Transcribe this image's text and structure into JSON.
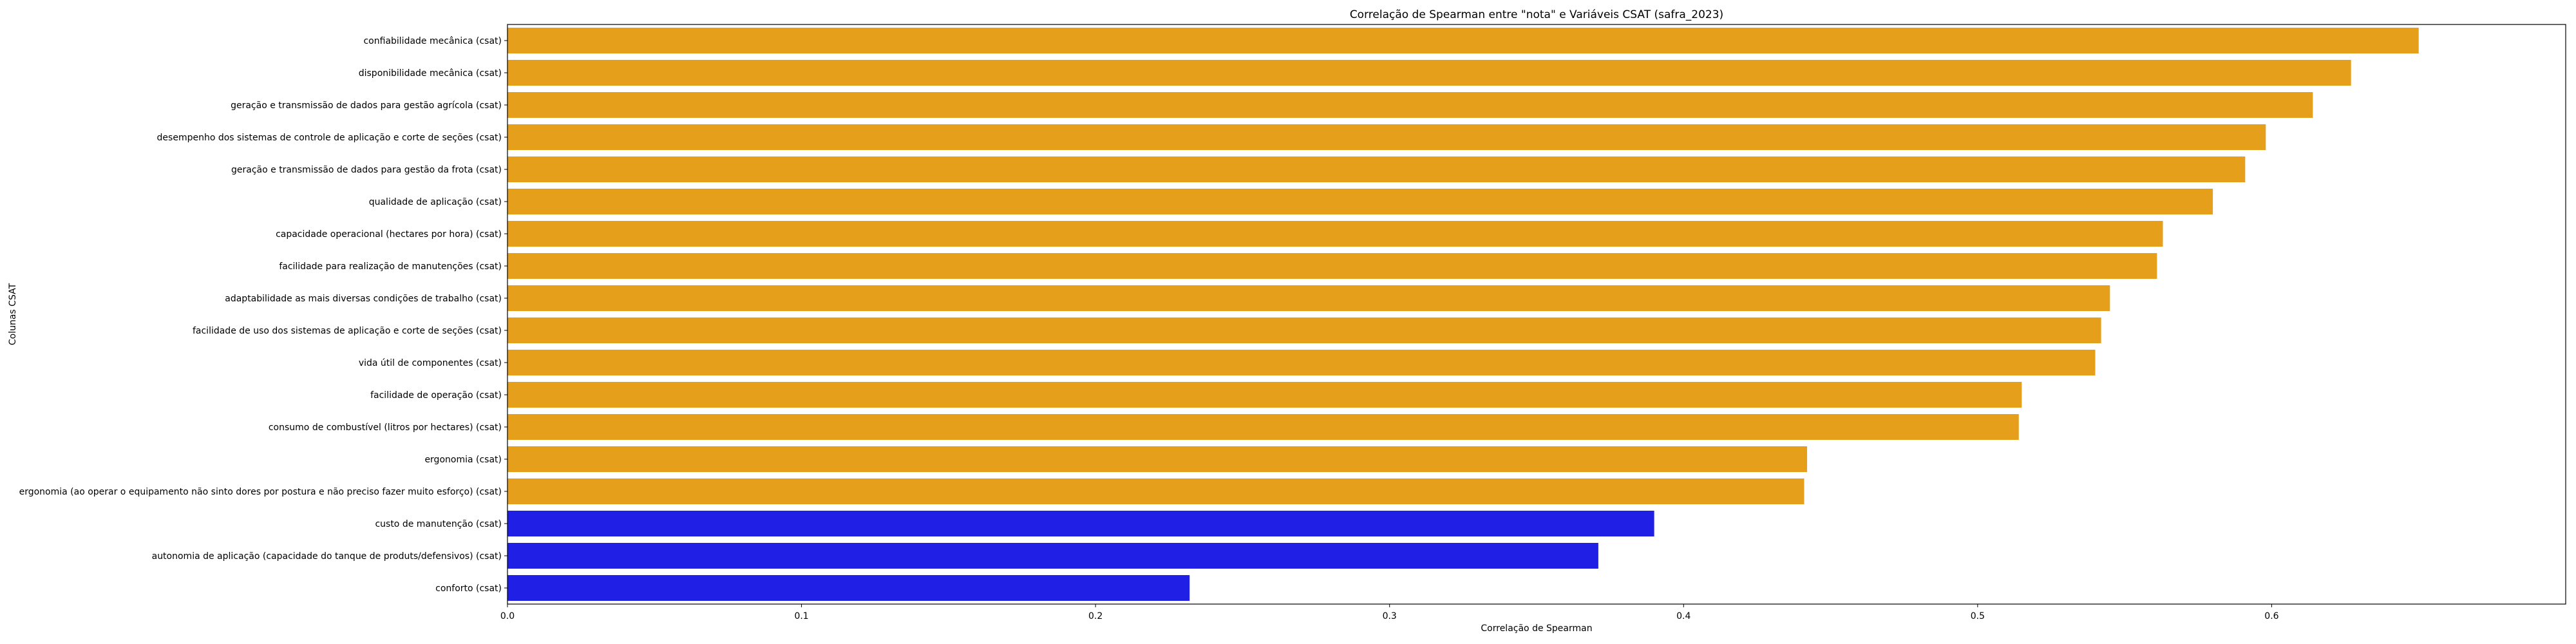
{
  "chart_data": {
    "type": "bar",
    "orientation": "horizontal",
    "title": "Correlação de Spearman entre \"nota\" e Variáveis CSAT (safra_2023)",
    "xlabel": "Correlação de Spearman",
    "ylabel": "Colunas CSAT",
    "xlim": [
      0,
      0.7
    ],
    "xticks": [
      0.0,
      0.1,
      0.2,
      0.3,
      0.4,
      0.5,
      0.6
    ],
    "xtick_labels": [
      "0.0",
      "0.1",
      "0.2",
      "0.3",
      "0.4",
      "0.5",
      "0.6"
    ],
    "grid": false,
    "legend": false,
    "categories": [
      "confiabilidade mecânica (csat)",
      "disponibilidade mecânica (csat)",
      "geração e transmissão de dados para gestão agrícola (csat)",
      "desempenho dos sistemas de controle de aplicação e corte de seções (csat)",
      "geração e transmissão de dados para gestão da frota (csat)",
      "qualidade de aplicação (csat)",
      "capacidade operacional (hectares por hora) (csat)",
      "facilidade para realização de manutenções (csat)",
      "adaptabilidade as mais diversas condições de trabalho (csat)",
      "facilidade de uso dos sistemas de aplicação e corte de seções (csat)",
      "vida útil de componentes (csat)",
      "facilidade de operação (csat)",
      "consumo de combustível (litros por hectares) (csat)",
      "ergonomia (csat)",
      "ergonomia (ao operar o equipamento não sinto dores por postura e não preciso fazer muito esforço) (csat)",
      "custo de manutenção (csat)",
      "autonomia de aplicação (capacidade do tanque de produts/defensivos) (csat)",
      "conforto (csat)"
    ],
    "values": [
      0.65,
      0.627,
      0.614,
      0.598,
      0.591,
      0.58,
      0.563,
      0.561,
      0.545,
      0.542,
      0.54,
      0.515,
      0.514,
      0.442,
      0.441,
      0.39,
      0.371,
      0.232
    ],
    "bar_colors": [
      "#e69f1a",
      "#e69f1a",
      "#e69f1a",
      "#e69f1a",
      "#e69f1a",
      "#e69f1a",
      "#e69f1a",
      "#e69f1a",
      "#e69f1a",
      "#e69f1a",
      "#e69f1a",
      "#e69f1a",
      "#e69f1a",
      "#e69f1a",
      "#e69f1a",
      "#1f1fe6",
      "#1f1fe6",
      "#1f1fe6"
    ]
  }
}
